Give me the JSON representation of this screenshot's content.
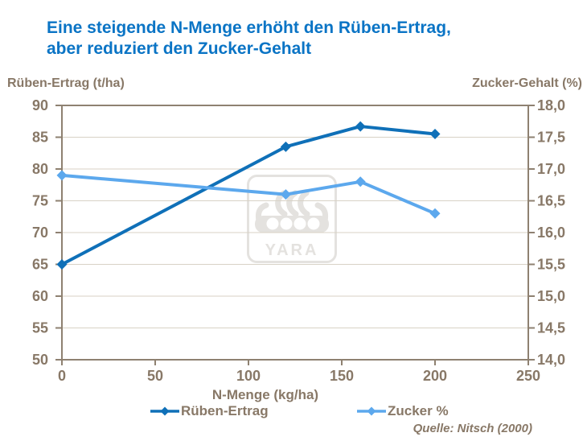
{
  "title": {
    "line1": "Eine steigende N-Menge erhöht den Rüben-Ertrag,",
    "line2": "aber reduziert den Zucker-Gehalt"
  },
  "left_axis_title": "Rüben-Ertrag (t/ha)",
  "right_axis_title": "Zucker-Gehalt (%)",
  "watermark_text": "YARA",
  "source": "Quelle: Nitsch (2000)",
  "colors": {
    "title_blue": "#0a74c5",
    "dark_line": "#0f70b8",
    "light_line": "#5ca8ed",
    "axis_text_brown": "#887867",
    "frame_brown": "#8e8171",
    "gridline": "#d8d2c6",
    "watermark_gray": "#e4e2df",
    "background": "#ffffff"
  },
  "chart_data": {
    "type": "line",
    "x": [
      0,
      120,
      160,
      200
    ],
    "series": [
      {
        "name": "Rüben-Ertrag",
        "axis": "left",
        "color": "#0f70b8",
        "values": [
          65.0,
          83.5,
          86.7,
          85.5
        ]
      },
      {
        "name": "Zucker %",
        "axis": "right",
        "color": "#5ca8ed",
        "values": [
          16.9,
          16.6,
          16.8,
          16.3
        ]
      }
    ],
    "xlabel": "N-Menge (kg/ha)",
    "xlim": [
      0,
      250
    ],
    "x_ticks": [
      "0",
      "50",
      "100",
      "150",
      "200",
      "250"
    ],
    "x_tick_values": [
      0,
      50,
      100,
      150,
      200,
      250
    ],
    "left_lim": [
      50,
      90
    ],
    "left_ticks": [
      "90",
      "85",
      "80",
      "75",
      "70",
      "65",
      "60",
      "55",
      "50"
    ],
    "right_lim": [
      14,
      18
    ],
    "right_ticks": [
      "18,0",
      "17,5",
      "17,0",
      "16,5",
      "16,0",
      "15,5",
      "15,0",
      "14,5",
      "14,0"
    ],
    "grid": "horizontal",
    "legend_position": "bottom"
  }
}
